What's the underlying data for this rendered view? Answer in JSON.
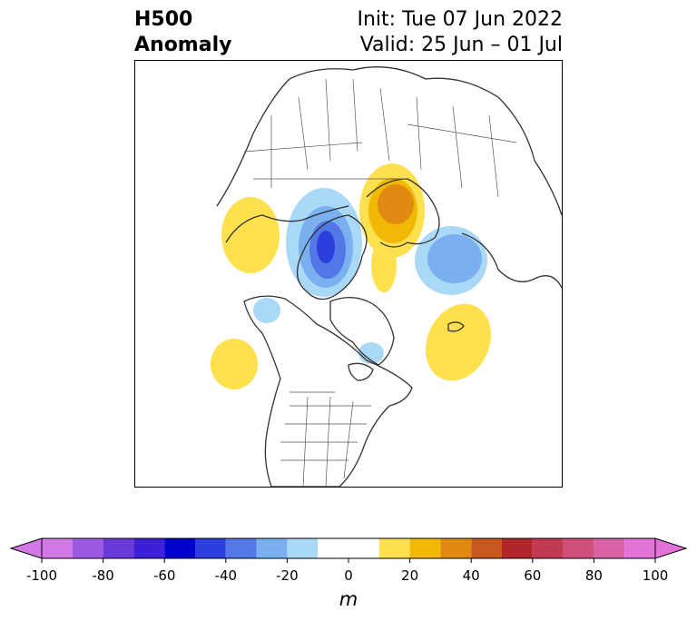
{
  "title": {
    "left_line1": "H500",
    "left_line2": "Anomaly",
    "right_line1": "Init: Tue 07 Jun 2022",
    "right_line2": "Valid: 25 Jun – 01 Jul"
  },
  "colorbar": {
    "unit": "m",
    "ticks": [
      "-100",
      "-80",
      "-60",
      "-40",
      "-20",
      "0",
      "20",
      "40",
      "60",
      "80",
      "100"
    ],
    "bins": [
      {
        "from": -100,
        "to": -90,
        "color": "#d277e6"
      },
      {
        "from": -90,
        "to": -80,
        "color": "#9d58e2"
      },
      {
        "from": -80,
        "to": -70,
        "color": "#6a3ad9"
      },
      {
        "from": -70,
        "to": -60,
        "color": "#3c1fd6"
      },
      {
        "from": -60,
        "to": -50,
        "color": "#0000cc"
      },
      {
        "from": -50,
        "to": -40,
        "color": "#2a3fdc"
      },
      {
        "from": -40,
        "to": -30,
        "color": "#5377e6"
      },
      {
        "from": -30,
        "to": -20,
        "color": "#7ab0f0"
      },
      {
        "from": -20,
        "to": -10,
        "color": "#aad8f7"
      },
      {
        "from": -10,
        "to": 10,
        "color": "#ffffff"
      },
      {
        "from": 10,
        "to": 20,
        "color": "#ffe04f"
      },
      {
        "from": 20,
        "to": 30,
        "color": "#f2b806"
      },
      {
        "from": 30,
        "to": 40,
        "color": "#e08a12"
      },
      {
        "from": 40,
        "to": 50,
        "color": "#c9581e"
      },
      {
        "from": 50,
        "to": 60,
        "color": "#b2252a"
      },
      {
        "from": 60,
        "to": 70,
        "color": "#c23a52"
      },
      {
        "from": 70,
        "to": 80,
        "color": "#cf4f7a"
      },
      {
        "from": 80,
        "to": 90,
        "color": "#d863a4"
      },
      {
        "from": 90,
        "to": 100,
        "color": "#e272d6"
      }
    ],
    "extend_low_color": "#d277e6",
    "extend_high_color": "#e272d6"
  },
  "map": {
    "projection": "north-polar",
    "coastline_color": "#333333",
    "anomalies": [
      {
        "region": "East Asia / Sea of Okhotsk",
        "sign": "positive",
        "levels": [
          10,
          20
        ]
      },
      {
        "region": "Siberian Arctic",
        "sign": "negative",
        "levels": [
          -10,
          -20,
          -30,
          -40
        ]
      },
      {
        "region": "Scandinavia / Barents Sea",
        "sign": "positive",
        "levels": [
          10,
          20,
          30
        ]
      },
      {
        "region": "Central Asia",
        "sign": "negative",
        "levels": [
          -10,
          -20
        ]
      },
      {
        "region": "North Atlantic",
        "sign": "positive",
        "levels": [
          10
        ]
      },
      {
        "region": "Northeast Pacific",
        "sign": "positive",
        "levels": [
          10
        ]
      },
      {
        "region": "Alaska",
        "sign": "negative",
        "levels": [
          -10
        ]
      },
      {
        "region": "Hudson Bay",
        "sign": "negative",
        "levels": [
          -10
        ]
      }
    ]
  }
}
